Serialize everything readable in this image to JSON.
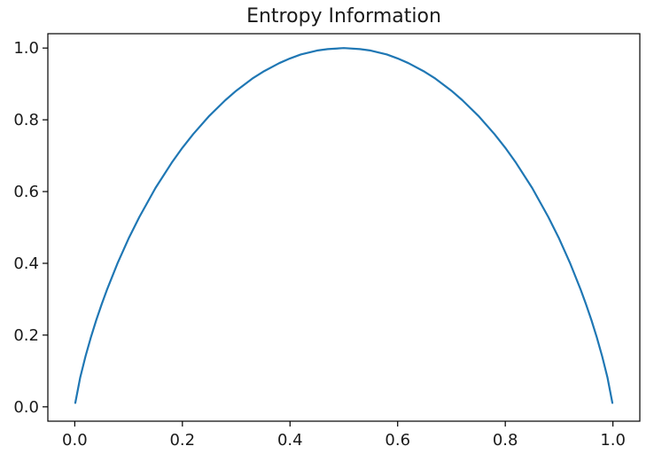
{
  "chart_data": {
    "type": "line",
    "title": "Entropy Information",
    "xlabel": "",
    "ylabel": "",
    "xlim": [
      -0.05,
      1.05
    ],
    "ylim": [
      -0.04,
      1.04
    ],
    "grid": false,
    "x_ticks": [
      0.0,
      0.2,
      0.4,
      0.6,
      0.8,
      1.0
    ],
    "x_tick_labels": [
      "0.0",
      "0.2",
      "0.4",
      "0.6",
      "0.8",
      "1.0"
    ],
    "y_ticks": [
      0.0,
      0.2,
      0.4,
      0.6,
      0.8,
      1.0
    ],
    "y_tick_labels": [
      "0.0",
      "0.2",
      "0.4",
      "0.6",
      "0.8",
      "1.0"
    ],
    "series": [
      {
        "color": "#1f77b4",
        "x": [
          0.001,
          0.01,
          0.02,
          0.03,
          0.04,
          0.05,
          0.06,
          0.08,
          0.1,
          0.12,
          0.15,
          0.18,
          0.2,
          0.22,
          0.25,
          0.28,
          0.3,
          0.33,
          0.35,
          0.38,
          0.4,
          0.42,
          0.45,
          0.47,
          0.5,
          0.53,
          0.55,
          0.58,
          0.6,
          0.62,
          0.65,
          0.67,
          0.7,
          0.72,
          0.75,
          0.78,
          0.8,
          0.82,
          0.85,
          0.88,
          0.9,
          0.92,
          0.94,
          0.95,
          0.96,
          0.97,
          0.98,
          0.99,
          0.999
        ],
        "y": [
          0.011,
          0.081,
          0.141,
          0.194,
          0.242,
          0.286,
          0.327,
          0.402,
          0.469,
          0.529,
          0.61,
          0.68,
          0.722,
          0.76,
          0.811,
          0.855,
          0.881,
          0.915,
          0.934,
          0.958,
          0.971,
          0.982,
          0.993,
          0.997,
          1.0,
          0.997,
          0.993,
          0.982,
          0.971,
          0.958,
          0.934,
          0.915,
          0.881,
          0.855,
          0.811,
          0.76,
          0.722,
          0.68,
          0.61,
          0.529,
          0.469,
          0.402,
          0.327,
          0.286,
          0.242,
          0.194,
          0.141,
          0.081,
          0.011
        ]
      }
    ]
  }
}
